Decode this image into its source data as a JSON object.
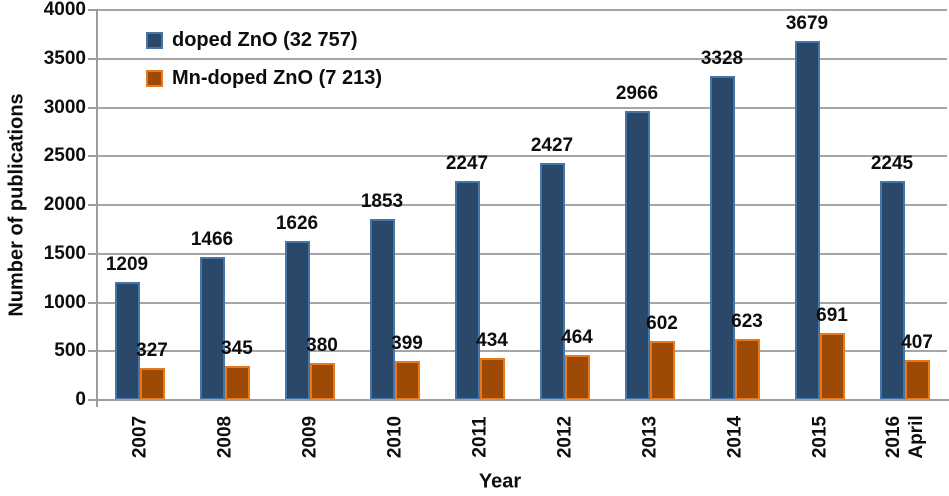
{
  "chart_data": {
    "type": "bar",
    "title": "",
    "xlabel": "Year",
    "ylabel": "Number of publications",
    "categories": [
      "2007",
      "2008",
      "2009",
      "2010",
      "2011",
      "2012",
      "2013",
      "2014",
      "2015",
      "2016\nApril"
    ],
    "series": [
      {
        "name": "doped ZnO (32 757)",
        "values": [
          1209,
          1466,
          1626,
          1853,
          2247,
          2427,
          2966,
          3328,
          3679,
          2245
        ],
        "fill_color": "#29486a",
        "border_color": "#4676a8"
      },
      {
        "name": "Mn-doped ZnO (7 213)",
        "values": [
          327,
          345,
          380,
          399,
          434,
          464,
          602,
          623,
          691,
          407
        ],
        "fill_color": "#9e4a07",
        "border_color": "#e9791d"
      }
    ],
    "ylim": [
      0,
      4000
    ],
    "ytick_step": 500,
    "yticks": [
      0,
      500,
      1000,
      1500,
      2000,
      2500,
      3000,
      3500,
      4000
    ],
    "grid": true,
    "legend_position": "top-left-inside",
    "value_labels": "outside-end",
    "grid_color": "#a6a6a6",
    "axis_color": "#9d9d9d",
    "text_color": "#0d0d0d"
  }
}
